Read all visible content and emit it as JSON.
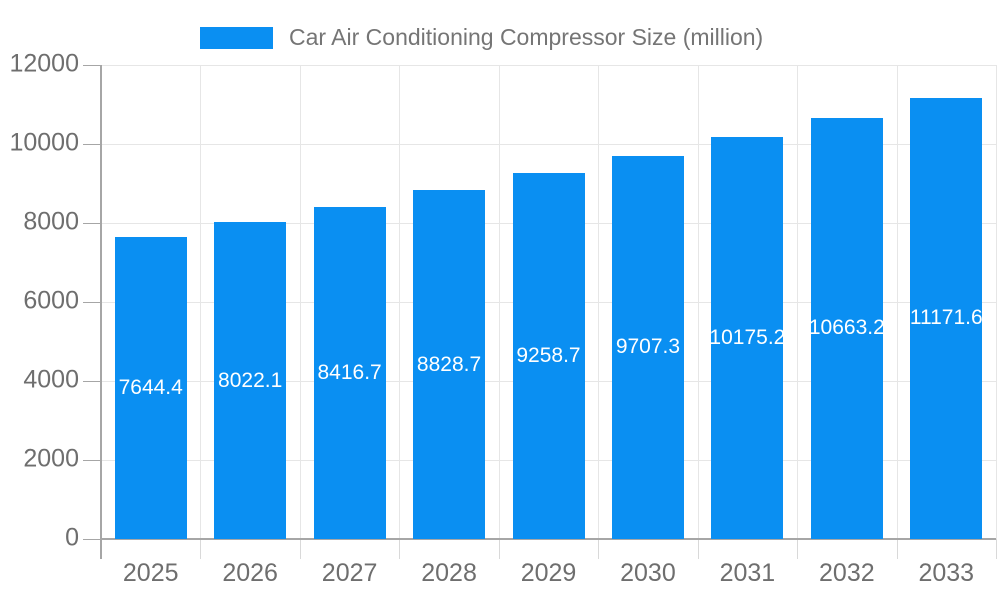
{
  "legend": {
    "label": "Car Air Conditioning Compressor Size (million)"
  },
  "chart_data": {
    "type": "bar",
    "title": "Car Air Conditioning Compressor Size (million)",
    "categories": [
      "2025",
      "2026",
      "2027",
      "2028",
      "2029",
      "2030",
      "2031",
      "2032",
      "2033"
    ],
    "values": [
      7644.4,
      8022.1,
      8416.7,
      8828.7,
      9258.7,
      9707.3,
      10175.2,
      10663.2,
      11171.6
    ],
    "value_labels": [
      "7644.4",
      "8022.1",
      "8416.7",
      "8828.7",
      "9258.7",
      "9707.3",
      "10175.2",
      "10663.2",
      "11171.6"
    ],
    "xlabel": "",
    "ylabel": "",
    "ylim": [
      0,
      12000
    ],
    "yticks": [
      0,
      2000,
      4000,
      6000,
      8000,
      10000,
      12000
    ],
    "grid": true,
    "legend_position": "top"
  },
  "style": {
    "bar_color": "#0a8ff2",
    "value_label_color": "#ffffff",
    "axis_label_color": "#6e6e6e",
    "legend_text_color": "#757575",
    "axis_line_color": "#a6a6a6",
    "gridline_color": "#e6e6e6",
    "x_tick_color": "#d9d9d9",
    "background_color": "#ffffff"
  }
}
